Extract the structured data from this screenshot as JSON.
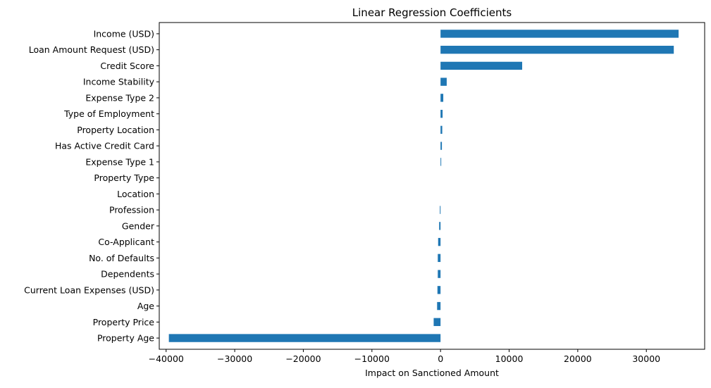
{
  "chart_data": {
    "type": "bar",
    "orientation": "horizontal",
    "title": "Linear Regression Coefficients",
    "xlabel": "Impact on Sanctioned Amount",
    "ylabel": "",
    "xlim": [
      -41000,
      38500
    ],
    "xticks": [
      -40000,
      -30000,
      -20000,
      -10000,
      0,
      10000,
      20000,
      30000
    ],
    "xtick_labels": [
      "−40000",
      "−30000",
      "−20000",
      "−10000",
      "0",
      "10000",
      "20000",
      "30000"
    ],
    "grid": false,
    "bar_color": "#1f77b4",
    "categories": [
      "Income (USD)",
      "Loan Amount Request (USD)",
      "Credit Score",
      "Income Stability",
      "Expense Type 2",
      "Type of Employment",
      "Property Location",
      "Has Active Credit Card",
      "Expense Type 1",
      "Property Type",
      "Location",
      "Profession",
      "Gender",
      "Co-Applicant",
      "No. of Defaults",
      "Dependents",
      "Current Loan Expenses (USD)",
      "Age",
      "Property Price",
      "Property Age"
    ],
    "values": [
      34700,
      34000,
      11900,
      900,
      400,
      300,
      250,
      200,
      100,
      0,
      0,
      -100,
      -200,
      -350,
      -400,
      -400,
      -450,
      -500,
      -1000,
      -39600
    ]
  }
}
